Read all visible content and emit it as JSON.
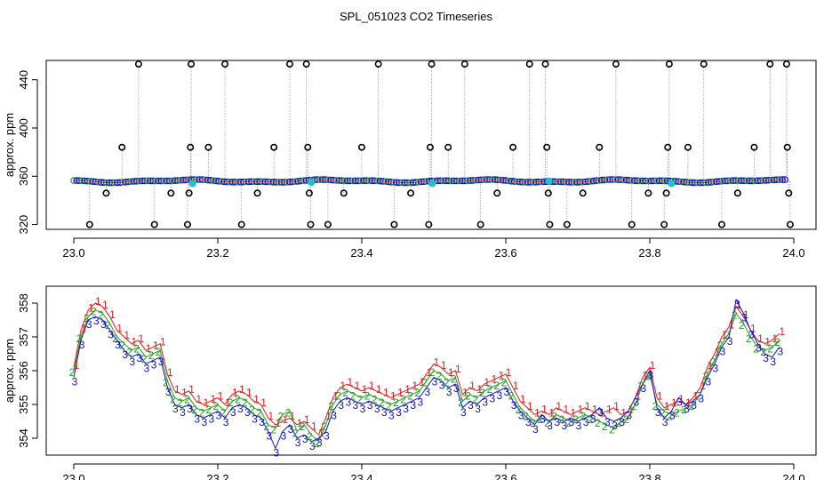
{
  "figure": {
    "title": "SPL_051023  CO2 Timeseries"
  },
  "colors": {
    "trace1": "#e41a1c",
    "trace2": "#1fa01f",
    "trace3": "#1010d0",
    "outlier": "#000000",
    "highlight": "#20c0d0",
    "connector": "#909090"
  },
  "chart_data": [
    {
      "type": "scatter",
      "panel": "top",
      "title": "",
      "xlabel": "",
      "ylabel": "approx. ppm",
      "xlim": [
        23.0,
        24.0
      ],
      "ylim": [
        316,
        456
      ],
      "xticks": [
        "23.0",
        "23.2",
        "23.4",
        "23.6",
        "23.8",
        "24.0"
      ],
      "yticks": [
        "320",
        "360",
        "400",
        "440"
      ],
      "baseline_ppm": 356,
      "outliers": [
        {
          "x": 23.022,
          "y": 320
        },
        {
          "x": 23.045,
          "y": 346
        },
        {
          "x": 23.067,
          "y": 384
        },
        {
          "x": 23.09,
          "y": 453
        },
        {
          "x": 23.112,
          "y": 320
        },
        {
          "x": 23.135,
          "y": 346
        },
        {
          "x": 23.158,
          "y": 320
        },
        {
          "x": 23.16,
          "y": 346
        },
        {
          "x": 23.162,
          "y": 384
        },
        {
          "x": 23.163,
          "y": 453
        },
        {
          "x": 23.187,
          "y": 384
        },
        {
          "x": 23.21,
          "y": 453
        },
        {
          "x": 23.233,
          "y": 320
        },
        {
          "x": 23.255,
          "y": 346
        },
        {
          "x": 23.278,
          "y": 384
        },
        {
          "x": 23.3,
          "y": 453
        },
        {
          "x": 23.323,
          "y": 453
        },
        {
          "x": 23.325,
          "y": 384
        },
        {
          "x": 23.327,
          "y": 346
        },
        {
          "x": 23.329,
          "y": 320
        },
        {
          "x": 23.353,
          "y": 320
        },
        {
          "x": 23.375,
          "y": 346
        },
        {
          "x": 23.4,
          "y": 384
        },
        {
          "x": 23.423,
          "y": 453
        },
        {
          "x": 23.445,
          "y": 320
        },
        {
          "x": 23.468,
          "y": 346
        },
        {
          "x": 23.493,
          "y": 320
        },
        {
          "x": 23.495,
          "y": 384
        },
        {
          "x": 23.497,
          "y": 453
        },
        {
          "x": 23.52,
          "y": 384
        },
        {
          "x": 23.543,
          "y": 453
        },
        {
          "x": 23.565,
          "y": 320
        },
        {
          "x": 23.588,
          "y": 346
        },
        {
          "x": 23.61,
          "y": 384
        },
        {
          "x": 23.633,
          "y": 453
        },
        {
          "x": 23.655,
          "y": 453
        },
        {
          "x": 23.657,
          "y": 384
        },
        {
          "x": 23.659,
          "y": 346
        },
        {
          "x": 23.661,
          "y": 320
        },
        {
          "x": 23.685,
          "y": 320
        },
        {
          "x": 23.707,
          "y": 346
        },
        {
          "x": 23.73,
          "y": 384
        },
        {
          "x": 23.753,
          "y": 453
        },
        {
          "x": 23.775,
          "y": 320
        },
        {
          "x": 23.798,
          "y": 346
        },
        {
          "x": 23.82,
          "y": 320
        },
        {
          "x": 23.823,
          "y": 346
        },
        {
          "x": 23.825,
          "y": 384
        },
        {
          "x": 23.827,
          "y": 453
        },
        {
          "x": 23.853,
          "y": 384
        },
        {
          "x": 23.875,
          "y": 453
        },
        {
          "x": 23.9,
          "y": 320
        },
        {
          "x": 23.922,
          "y": 346
        },
        {
          "x": 23.945,
          "y": 384
        },
        {
          "x": 23.967,
          "y": 453
        },
        {
          "x": 23.99,
          "y": 453
        },
        {
          "x": 23.991,
          "y": 384
        },
        {
          "x": 23.993,
          "y": 346
        },
        {
          "x": 23.995,
          "y": 320
        }
      ],
      "highlights": [
        {
          "x": 23.165,
          "y": 354
        },
        {
          "x": 23.33,
          "y": 355
        },
        {
          "x": 23.498,
          "y": 354
        },
        {
          "x": 23.66,
          "y": 356
        },
        {
          "x": 23.83,
          "y": 354
        }
      ]
    },
    {
      "type": "line",
      "panel": "bottom",
      "title": "",
      "xlabel": "",
      "ylabel": "approx. ppm",
      "xlim": [
        23.0,
        24.0
      ],
      "ylim": [
        353.5,
        358.5
      ],
      "xticks": [
        "23.0",
        "23.2",
        "23.4",
        "23.6",
        "23.8",
        "24.0"
      ],
      "yticks": [
        "354",
        "355",
        "356",
        "357",
        "358"
      ],
      "markers": [
        "1",
        "2",
        "3"
      ],
      "x": [
        23.0,
        23.01,
        23.02,
        23.03,
        23.04,
        23.05,
        23.06,
        23.07,
        23.08,
        23.09,
        23.1,
        23.11,
        23.12,
        23.13,
        23.14,
        23.15,
        23.16,
        23.17,
        23.18,
        23.19,
        23.2,
        23.21,
        23.22,
        23.23,
        23.24,
        23.25,
        23.26,
        23.27,
        23.28,
        23.29,
        23.3,
        23.31,
        23.32,
        23.33,
        23.34,
        23.35,
        23.36,
        23.37,
        23.38,
        23.39,
        23.4,
        23.41,
        23.42,
        23.43,
        23.44,
        23.45,
        23.46,
        23.47,
        23.48,
        23.49,
        23.5,
        23.51,
        23.52,
        23.53,
        23.54,
        23.55,
        23.56,
        23.57,
        23.58,
        23.59,
        23.6,
        23.61,
        23.62,
        23.63,
        23.64,
        23.65,
        23.66,
        23.67,
        23.68,
        23.69,
        23.7,
        23.71,
        23.72,
        23.73,
        23.74,
        23.75,
        23.76,
        23.77,
        23.78,
        23.79,
        23.8,
        23.81,
        23.82,
        23.83,
        23.84,
        23.85,
        23.86,
        23.87,
        23.88,
        23.89,
        23.9,
        23.91,
        23.92,
        23.93,
        23.94,
        23.95,
        23.96,
        23.97,
        23.98
      ],
      "series": [
        {
          "name": "1",
          "values": [
            356.1,
            357.2,
            357.8,
            358.0,
            357.9,
            357.6,
            357.2,
            357.0,
            356.8,
            356.9,
            356.6,
            356.7,
            356.8,
            355.9,
            355.4,
            355.3,
            355.4,
            355.1,
            355.0,
            355.1,
            355.2,
            355.0,
            355.3,
            355.4,
            355.3,
            355.1,
            355.0,
            354.6,
            354.4,
            354.5,
            354.6,
            354.4,
            354.5,
            354.3,
            354.1,
            354.6,
            355.2,
            355.5,
            355.6,
            355.5,
            355.4,
            355.5,
            355.4,
            355.3,
            355.2,
            355.3,
            355.4,
            355.5,
            355.6,
            355.9,
            356.2,
            356.1,
            355.9,
            356.0,
            355.3,
            355.5,
            355.4,
            355.6,
            355.7,
            355.8,
            355.9,
            355.5,
            355.1,
            354.9,
            354.7,
            354.8,
            354.7,
            354.9,
            354.8,
            354.7,
            354.8,
            354.9,
            354.8,
            354.7,
            354.8,
            354.9,
            354.7,
            354.8,
            355.2,
            355.8,
            356.1,
            355.2,
            354.9,
            355.0,
            355.1,
            355.0,
            355.2,
            355.5,
            356.1,
            356.5,
            357.0,
            357.3,
            357.9,
            357.6,
            357.2,
            356.9,
            356.8,
            356.9,
            357.1
          ]
        },
        {
          "name": "2",
          "values": [
            356.0,
            357.0,
            357.6,
            357.8,
            357.7,
            357.4,
            357.0,
            356.8,
            356.6,
            356.7,
            356.4,
            356.5,
            356.6,
            355.7,
            355.2,
            355.1,
            355.2,
            354.9,
            354.8,
            354.9,
            355.0,
            354.8,
            355.1,
            355.2,
            355.1,
            354.9,
            354.8,
            354.4,
            354.3,
            354.7,
            354.8,
            354.2,
            354.4,
            354.1,
            353.9,
            354.4,
            355.0,
            355.3,
            355.4,
            355.3,
            355.2,
            355.3,
            355.2,
            355.1,
            355.0,
            355.1,
            355.2,
            355.3,
            355.4,
            355.7,
            356.0,
            355.9,
            355.7,
            355.8,
            355.1,
            355.3,
            355.2,
            355.4,
            355.5,
            355.6,
            355.7,
            355.3,
            354.9,
            354.7,
            354.5,
            354.6,
            354.5,
            354.7,
            354.6,
            354.5,
            354.6,
            354.7,
            354.6,
            354.5,
            354.4,
            354.3,
            354.5,
            354.6,
            355.0,
            355.6,
            355.9,
            355.0,
            354.8,
            354.7,
            354.8,
            354.9,
            355.0,
            355.3,
            355.9,
            356.3,
            356.8,
            357.1,
            357.7,
            357.4,
            357.0,
            356.7,
            356.6,
            356.7,
            356.9
          ]
        },
        {
          "name": "3",
          "values": [
            355.8,
            356.9,
            357.5,
            357.6,
            357.5,
            357.2,
            356.9,
            356.6,
            356.4,
            356.5,
            356.2,
            356.3,
            356.4,
            355.5,
            355.0,
            354.9,
            355.0,
            354.7,
            354.6,
            354.7,
            354.8,
            354.6,
            354.9,
            355.0,
            354.9,
            354.7,
            354.6,
            354.2,
            353.7,
            354.2,
            354.4,
            354.0,
            354.1,
            353.9,
            354.0,
            354.2,
            354.8,
            355.1,
            355.2,
            355.1,
            355.0,
            355.1,
            355.0,
            354.9,
            354.8,
            354.9,
            355.0,
            355.1,
            355.2,
            355.5,
            355.8,
            355.7,
            355.5,
            355.6,
            354.9,
            355.1,
            355.0,
            355.2,
            355.3,
            355.4,
            355.5,
            355.1,
            354.8,
            354.6,
            354.4,
            354.7,
            354.5,
            354.6,
            354.5,
            354.6,
            354.5,
            354.6,
            354.7,
            354.9,
            354.6,
            354.5,
            354.6,
            354.8,
            355.2,
            355.6,
            356.0,
            354.9,
            354.6,
            354.8,
            355.2,
            355.0,
            355.1,
            355.3,
            355.8,
            356.2,
            356.7,
            357.0,
            358.1,
            357.7,
            357.2,
            356.8,
            356.5,
            356.4,
            356.7
          ]
        }
      ]
    }
  ]
}
